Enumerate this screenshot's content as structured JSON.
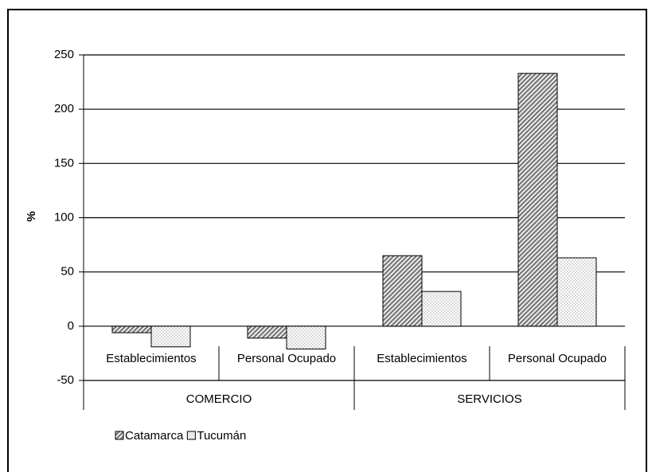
{
  "chart_data": {
    "type": "bar",
    "ylabel": "%",
    "categories": [
      "Establecimientos",
      "Personal Ocupado",
      "Establecimientos",
      "Personal Ocupado"
    ],
    "groups": [
      "COMERCIO",
      "SERVICIOS"
    ],
    "series": [
      {
        "name": "Catamarca",
        "color": "#7a7a7a",
        "values": [
          -6,
          -11,
          65,
          233
        ]
      },
      {
        "name": "Tucumán",
        "color": "#d9d9d9",
        "values": [
          -19,
          -21,
          32,
          63
        ]
      }
    ],
    "ylim": [
      -50,
      250
    ],
    "yticks": [
      -50,
      0,
      50,
      100,
      150,
      200,
      250
    ],
    "grid": true
  }
}
